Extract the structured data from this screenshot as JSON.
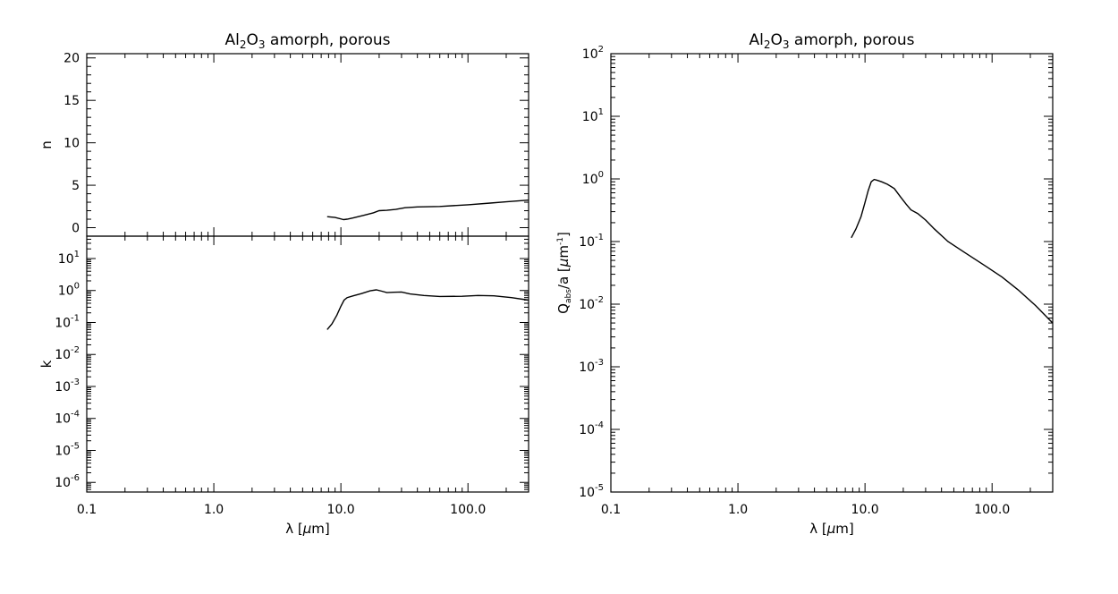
{
  "chart_data": [
    {
      "id": "n",
      "type": "line",
      "title": {
        "prefix": "Al",
        "sub1": "2",
        "mid": "O",
        "sub2": "3",
        "suffix": " amorph, porous"
      },
      "xlabel": {
        "sym": "λ [",
        "mu": "μ",
        "unit": "m]"
      },
      "ylabel": "n",
      "xscale": "log",
      "xlim": [
        0.1,
        300
      ],
      "ylim": [
        -1,
        20.5
      ],
      "xticks": [
        0.1,
        1,
        10,
        100
      ],
      "xticklabels": [
        "0.1",
        "1.0",
        "10.0",
        "100.0"
      ],
      "yticks": [
        0,
        5,
        10,
        15,
        20
      ],
      "yticklabels": [
        "0",
        "5",
        "10",
        "15",
        "20"
      ],
      "series": [
        {
          "x": [
            7.8,
            9.0,
            10.5,
            11.2,
            12.5,
            15,
            18,
            20,
            23,
            27,
            32,
            40,
            60,
            100,
            150,
            200,
            300
          ],
          "y": [
            1.3,
            1.2,
            0.95,
            1.0,
            1.15,
            1.45,
            1.75,
            2.0,
            2.05,
            2.15,
            2.35,
            2.45,
            2.5,
            2.7,
            2.9,
            3.05,
            3.25
          ]
        }
      ]
    },
    {
      "id": "k",
      "type": "line",
      "xlabel": {
        "sym": "λ [",
        "mu": "μ",
        "unit": "m]"
      },
      "ylabel": "k",
      "xscale": "log",
      "yscale": "log",
      "xlim": [
        0.1,
        300
      ],
      "ylim": [
        5e-07,
        50
      ],
      "xticks": [
        0.1,
        1,
        10,
        100
      ],
      "xticklabels": [
        "0.1",
        "1.0",
        "10.0",
        "100.0"
      ],
      "yticks": [
        1e-06,
        1e-05,
        0.0001,
        0.001,
        0.01,
        0.1,
        1,
        10
      ],
      "yticklabels": [
        [
          "10",
          "-6"
        ],
        [
          "10",
          "-5"
        ],
        [
          "10",
          "-4"
        ],
        [
          "10",
          "-3"
        ],
        [
          "10",
          "-2"
        ],
        [
          "10",
          "-1"
        ],
        [
          "10",
          "0"
        ],
        [
          "10",
          "1"
        ]
      ],
      "series": [
        {
          "x": [
            7.8,
            8.5,
            9.3,
            10.0,
            10.6,
            11.2,
            12.5,
            14.5,
            17,
            19,
            21,
            23,
            26,
            30,
            35,
            45,
            60,
            90,
            120,
            160,
            220,
            300
          ],
          "y": [
            0.06,
            0.09,
            0.17,
            0.32,
            0.5,
            0.6,
            0.68,
            0.8,
            0.98,
            1.05,
            0.95,
            0.86,
            0.88,
            0.9,
            0.78,
            0.7,
            0.65,
            0.66,
            0.7,
            0.68,
            0.6,
            0.5
          ]
        }
      ]
    },
    {
      "id": "qabs",
      "type": "line",
      "title": {
        "prefix": "Al",
        "sub1": "2",
        "mid": "O",
        "sub2": "3",
        "suffix": " amorph, porous"
      },
      "xlabel": {
        "sym": "λ [",
        "mu": "μ",
        "unit": "m]"
      },
      "ylabel": {
        "q": "Q",
        "qsub": "abs",
        "mid": "/a [",
        "mu": "μ",
        "unit": "m",
        "sup": "-1",
        "end": "]"
      },
      "xscale": "log",
      "yscale": "log",
      "xlim": [
        0.1,
        300
      ],
      "ylim": [
        1e-05,
        100
      ],
      "xticks": [
        0.1,
        1,
        10,
        100
      ],
      "xticklabels": [
        "0.1",
        "1.0",
        "10.0",
        "100.0"
      ],
      "yticks": [
        1e-05,
        0.0001,
        0.001,
        0.01,
        0.1,
        1,
        10,
        100
      ],
      "yticklabels": [
        [
          "10",
          "-5"
        ],
        [
          "10",
          "-4"
        ],
        [
          "10",
          "-3"
        ],
        [
          "10",
          "-2"
        ],
        [
          "10",
          "-1"
        ],
        [
          "10",
          "0"
        ],
        [
          "10",
          "1"
        ],
        [
          "10",
          "2"
        ]
      ],
      "series": [
        {
          "x": [
            7.8,
            8.5,
            9.3,
            10.0,
            10.6,
            11.2,
            11.8,
            12.5,
            13.5,
            15,
            17,
            19,
            21,
            23,
            26,
            30,
            35,
            45,
            60,
            90,
            120,
            160,
            220,
            300
          ],
          "y": [
            0.115,
            0.16,
            0.25,
            0.42,
            0.65,
            0.9,
            0.98,
            0.95,
            0.9,
            0.82,
            0.7,
            0.52,
            0.4,
            0.32,
            0.28,
            0.22,
            0.16,
            0.1,
            0.068,
            0.04,
            0.027,
            0.017,
            0.0095,
            0.005
          ]
        }
      ]
    }
  ]
}
